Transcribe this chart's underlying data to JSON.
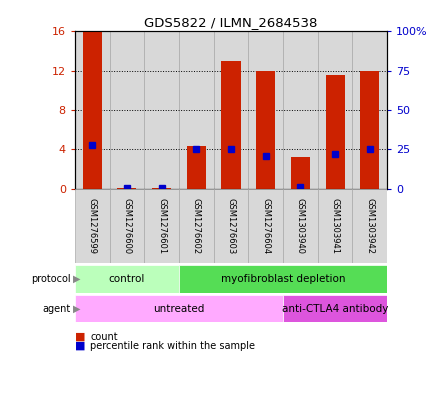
{
  "title": "GDS5822 / ILMN_2684538",
  "samples": [
    "GSM1276599",
    "GSM1276600",
    "GSM1276601",
    "GSM1276602",
    "GSM1276603",
    "GSM1276604",
    "GSM1303940",
    "GSM1303941",
    "GSM1303942"
  ],
  "counts": [
    16.0,
    0.05,
    0.05,
    4.3,
    13.0,
    12.0,
    3.2,
    11.6,
    12.0
  ],
  "percentile_ranks": [
    28.0,
    0.5,
    0.5,
    25.0,
    25.0,
    21.0,
    1.0,
    22.0,
    25.0
  ],
  "protocol_groups": [
    {
      "label": "control",
      "start": 0,
      "end": 3,
      "color": "#bbffbb"
    },
    {
      "label": "myofibroblast depletion",
      "start": 3,
      "end": 9,
      "color": "#55dd55"
    }
  ],
  "agent_groups": [
    {
      "label": "untreated",
      "start": 0,
      "end": 6,
      "color": "#ffaaff"
    },
    {
      "label": "anti-CTLA4 antibody",
      "start": 6,
      "end": 9,
      "color": "#dd55dd"
    }
  ],
  "ylim_left": [
    0,
    16
  ],
  "ylim_right": [
    0,
    100
  ],
  "yticks_left": [
    0,
    4,
    8,
    12,
    16
  ],
  "ytick_labels_left": [
    "0",
    "4",
    "8",
    "12",
    "16"
  ],
  "yticks_right": [
    0,
    25,
    50,
    75,
    100
  ],
  "ytick_labels_right": [
    "0",
    "25",
    "50",
    "75",
    "100%"
  ],
  "bar_color": "#cc2200",
  "dot_color": "#0000cc",
  "bar_width": 0.55,
  "col_bg_color": "#d8d8d8",
  "col_edge_color": "#aaaaaa",
  "left_axis_color": "#cc2200",
  "right_axis_color": "#0000cc"
}
